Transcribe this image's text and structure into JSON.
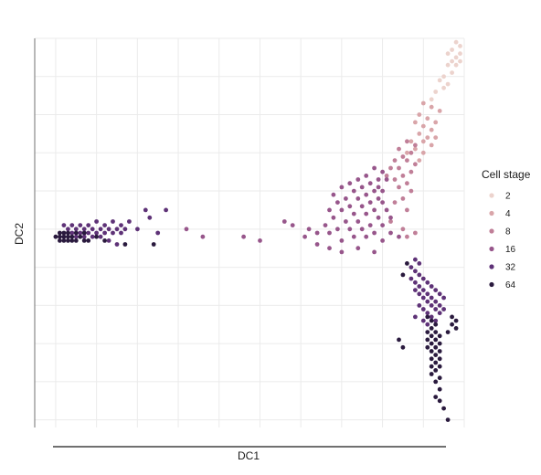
{
  "chart_data": {
    "type": "scatter",
    "xlabel": "DC1",
    "ylabel": "DC2",
    "xlim": [
      -0.02,
      1.0
    ],
    "ylim": [
      -0.02,
      1.0
    ],
    "x_ticks": [
      0.0,
      0.1,
      0.2,
      0.3,
      0.4,
      0.5,
      0.6,
      0.7,
      0.8,
      0.9,
      1.0
    ],
    "y_ticks": [
      0.0,
      0.1,
      0.2,
      0.3,
      0.4,
      0.5,
      0.6,
      0.7,
      0.8,
      0.9,
      1.0
    ],
    "grid": true,
    "legend": {
      "title": "Cell stage",
      "position": "right"
    },
    "series": [
      {
        "name": "2",
        "color": "#ecd3cd",
        "points": [
          [
            0.98,
            0.99
          ],
          [
            0.99,
            0.98
          ],
          [
            0.97,
            0.97
          ],
          [
            0.99,
            0.96
          ],
          [
            0.96,
            0.96
          ],
          [
            0.98,
            0.95
          ],
          [
            0.97,
            0.94
          ],
          [
            0.99,
            0.94
          ],
          [
            0.96,
            0.93
          ],
          [
            0.98,
            0.93
          ],
          [
            0.95,
            0.9
          ],
          [
            0.97,
            0.91
          ],
          [
            0.94,
            0.89
          ],
          [
            0.96,
            0.88
          ],
          [
            0.95,
            0.87
          ],
          [
            0.93,
            0.86
          ],
          [
            0.92,
            0.84
          ]
        ]
      },
      {
        "name": "4",
        "color": "#d9a5a9",
        "points": [
          [
            0.9,
            0.83
          ],
          [
            0.92,
            0.82
          ],
          [
            0.94,
            0.81
          ],
          [
            0.89,
            0.8
          ],
          [
            0.91,
            0.79
          ],
          [
            0.93,
            0.78
          ],
          [
            0.88,
            0.78
          ],
          [
            0.9,
            0.77
          ],
          [
            0.92,
            0.76
          ],
          [
            0.89,
            0.75
          ],
          [
            0.91,
            0.74
          ],
          [
            0.93,
            0.74
          ],
          [
            0.87,
            0.73
          ],
          [
            0.9,
            0.73
          ],
          [
            0.92,
            0.72
          ],
          [
            0.88,
            0.71
          ],
          [
            0.9,
            0.7
          ],
          [
            0.86,
            0.7
          ],
          [
            0.89,
            0.68
          ]
        ]
      },
      {
        "name": "8",
        "color": "#c07f98",
        "points": [
          [
            0.86,
            0.73
          ],
          [
            0.88,
            0.72
          ],
          [
            0.84,
            0.71
          ],
          [
            0.87,
            0.7
          ],
          [
            0.85,
            0.69
          ],
          [
            0.83,
            0.68
          ],
          [
            0.86,
            0.68
          ],
          [
            0.88,
            0.67
          ],
          [
            0.82,
            0.66
          ],
          [
            0.84,
            0.66
          ],
          [
            0.87,
            0.65
          ],
          [
            0.85,
            0.64
          ],
          [
            0.83,
            0.63
          ],
          [
            0.86,
            0.62
          ],
          [
            0.81,
            0.64
          ],
          [
            0.84,
            0.61
          ],
          [
            0.87,
            0.6
          ],
          [
            0.85,
            0.58
          ],
          [
            0.83,
            0.57
          ],
          [
            0.86,
            0.55
          ],
          [
            0.82,
            0.52
          ],
          [
            0.85,
            0.5
          ],
          [
            0.88,
            0.49
          ],
          [
            0.86,
            0.48
          ]
        ]
      },
      {
        "name": "16",
        "color": "#97568b",
        "points": [
          [
            0.78,
            0.66
          ],
          [
            0.8,
            0.65
          ],
          [
            0.76,
            0.64
          ],
          [
            0.79,
            0.63
          ],
          [
            0.81,
            0.63
          ],
          [
            0.74,
            0.63
          ],
          [
            0.77,
            0.62
          ],
          [
            0.79,
            0.61
          ],
          [
            0.72,
            0.62
          ],
          [
            0.75,
            0.61
          ],
          [
            0.78,
            0.6
          ],
          [
            0.8,
            0.6
          ],
          [
            0.7,
            0.61
          ],
          [
            0.73,
            0.6
          ],
          [
            0.76,
            0.59
          ],
          [
            0.79,
            0.58
          ],
          [
            0.68,
            0.59
          ],
          [
            0.71,
            0.58
          ],
          [
            0.74,
            0.58
          ],
          [
            0.77,
            0.57
          ],
          [
            0.8,
            0.57
          ],
          [
            0.69,
            0.57
          ],
          [
            0.72,
            0.56
          ],
          [
            0.75,
            0.56
          ],
          [
            0.78,
            0.55
          ],
          [
            0.81,
            0.55
          ],
          [
            0.67,
            0.55
          ],
          [
            0.7,
            0.55
          ],
          [
            0.73,
            0.54
          ],
          [
            0.76,
            0.54
          ],
          [
            0.79,
            0.53
          ],
          [
            0.82,
            0.53
          ],
          [
            0.68,
            0.53
          ],
          [
            0.71,
            0.52
          ],
          [
            0.74,
            0.52
          ],
          [
            0.77,
            0.51
          ],
          [
            0.8,
            0.51
          ],
          [
            0.72,
            0.5
          ],
          [
            0.75,
            0.5
          ],
          [
            0.78,
            0.49
          ],
          [
            0.66,
            0.51
          ],
          [
            0.69,
            0.5
          ],
          [
            0.73,
            0.48
          ],
          [
            0.76,
            0.48
          ],
          [
            0.8,
            0.47
          ],
          [
            0.7,
            0.47
          ],
          [
            0.64,
            0.49
          ],
          [
            0.67,
            0.49
          ],
          [
            0.62,
            0.5
          ],
          [
            0.58,
            0.51
          ],
          [
            0.56,
            0.52
          ],
          [
            0.61,
            0.48
          ],
          [
            0.64,
            0.46
          ],
          [
            0.67,
            0.45
          ],
          [
            0.82,
            0.49
          ],
          [
            0.84,
            0.48
          ],
          [
            0.74,
            0.45
          ],
          [
            0.7,
            0.44
          ],
          [
            0.78,
            0.44
          ],
          [
            0.32,
            0.5
          ],
          [
            0.36,
            0.48
          ],
          [
            0.46,
            0.48
          ],
          [
            0.5,
            0.47
          ]
        ]
      },
      {
        "name": "32",
        "color": "#5e3277",
        "points": [
          [
            0.88,
            0.42
          ],
          [
            0.89,
            0.41
          ],
          [
            0.87,
            0.4
          ],
          [
            0.88,
            0.39
          ],
          [
            0.89,
            0.38
          ],
          [
            0.87,
            0.37
          ],
          [
            0.9,
            0.37
          ],
          [
            0.88,
            0.36
          ],
          [
            0.91,
            0.36
          ],
          [
            0.89,
            0.35
          ],
          [
            0.92,
            0.35
          ],
          [
            0.88,
            0.34
          ],
          [
            0.9,
            0.34
          ],
          [
            0.93,
            0.34
          ],
          [
            0.89,
            0.33
          ],
          [
            0.91,
            0.33
          ],
          [
            0.94,
            0.33
          ],
          [
            0.9,
            0.32
          ],
          [
            0.92,
            0.32
          ],
          [
            0.95,
            0.32
          ],
          [
            0.91,
            0.31
          ],
          [
            0.93,
            0.31
          ],
          [
            0.89,
            0.3
          ],
          [
            0.92,
            0.3
          ],
          [
            0.94,
            0.3
          ],
          [
            0.9,
            0.29
          ],
          [
            0.93,
            0.29
          ],
          [
            0.95,
            0.29
          ],
          [
            0.91,
            0.28
          ],
          [
            0.94,
            0.28
          ],
          [
            0.92,
            0.27
          ],
          [
            0.9,
            0.26
          ],
          [
            0.93,
            0.26
          ],
          [
            0.91,
            0.25
          ],
          [
            0.88,
            0.27
          ],
          [
            0.02,
            0.51
          ],
          [
            0.04,
            0.51
          ],
          [
            0.06,
            0.51
          ],
          [
            0.08,
            0.51
          ],
          [
            0.1,
            0.52
          ],
          [
            0.12,
            0.51
          ],
          [
            0.14,
            0.52
          ],
          [
            0.16,
            0.51
          ],
          [
            0.18,
            0.52
          ],
          [
            0.03,
            0.5
          ],
          [
            0.05,
            0.5
          ],
          [
            0.07,
            0.5
          ],
          [
            0.09,
            0.5
          ],
          [
            0.11,
            0.5
          ],
          [
            0.13,
            0.5
          ],
          [
            0.15,
            0.5
          ],
          [
            0.17,
            0.5
          ],
          [
            0.04,
            0.49
          ],
          [
            0.06,
            0.49
          ],
          [
            0.08,
            0.49
          ],
          [
            0.1,
            0.49
          ],
          [
            0.12,
            0.49
          ],
          [
            0.14,
            0.49
          ],
          [
            0.16,
            0.49
          ],
          [
            0.02,
            0.48
          ],
          [
            0.05,
            0.48
          ],
          [
            0.07,
            0.48
          ],
          [
            0.09,
            0.48
          ],
          [
            0.11,
            0.48
          ],
          [
            0.13,
            0.47
          ],
          [
            0.15,
            0.46
          ],
          [
            0.23,
            0.53
          ],
          [
            0.25,
            0.49
          ],
          [
            0.22,
            0.55
          ],
          [
            0.27,
            0.55
          ],
          [
            0.2,
            0.5
          ]
        ]
      },
      {
        "name": "64",
        "color": "#2a1a3e",
        "points": [
          [
            0.0,
            0.48
          ],
          [
            0.01,
            0.49
          ],
          [
            0.02,
            0.49
          ],
          [
            0.01,
            0.48
          ],
          [
            0.02,
            0.48
          ],
          [
            0.03,
            0.48
          ],
          [
            0.04,
            0.48
          ],
          [
            0.01,
            0.47
          ],
          [
            0.03,
            0.47
          ],
          [
            0.05,
            0.47
          ],
          [
            0.07,
            0.47
          ],
          [
            0.02,
            0.47
          ],
          [
            0.04,
            0.47
          ],
          [
            0.06,
            0.48
          ],
          [
            0.08,
            0.47
          ],
          [
            0.03,
            0.49
          ],
          [
            0.05,
            0.49
          ],
          [
            0.07,
            0.49
          ],
          [
            0.1,
            0.48
          ],
          [
            0.12,
            0.47
          ],
          [
            0.17,
            0.46
          ],
          [
            0.24,
            0.46
          ],
          [
            0.91,
            0.27
          ],
          [
            0.92,
            0.26
          ],
          [
            0.93,
            0.25
          ],
          [
            0.92,
            0.24
          ],
          [
            0.91,
            0.23
          ],
          [
            0.93,
            0.23
          ],
          [
            0.92,
            0.22
          ],
          [
            0.94,
            0.22
          ],
          [
            0.91,
            0.21
          ],
          [
            0.93,
            0.21
          ],
          [
            0.92,
            0.2
          ],
          [
            0.94,
            0.2
          ],
          [
            0.91,
            0.19
          ],
          [
            0.93,
            0.19
          ],
          [
            0.92,
            0.18
          ],
          [
            0.94,
            0.18
          ],
          [
            0.93,
            0.17
          ],
          [
            0.92,
            0.16
          ],
          [
            0.94,
            0.16
          ],
          [
            0.93,
            0.15
          ],
          [
            0.92,
            0.14
          ],
          [
            0.94,
            0.14
          ],
          [
            0.93,
            0.13
          ],
          [
            0.92,
            0.12
          ],
          [
            0.94,
            0.11
          ],
          [
            0.93,
            0.1
          ],
          [
            0.94,
            0.08
          ],
          [
            0.93,
            0.06
          ],
          [
            0.94,
            0.05
          ],
          [
            0.95,
            0.03
          ],
          [
            0.96,
            0.0
          ],
          [
            0.84,
            0.21
          ],
          [
            0.85,
            0.19
          ],
          [
            0.97,
            0.27
          ],
          [
            0.98,
            0.26
          ],
          [
            0.97,
            0.25
          ],
          [
            0.98,
            0.24
          ],
          [
            0.96,
            0.23
          ],
          [
            0.86,
            0.41
          ],
          [
            0.85,
            0.38
          ]
        ]
      }
    ]
  }
}
